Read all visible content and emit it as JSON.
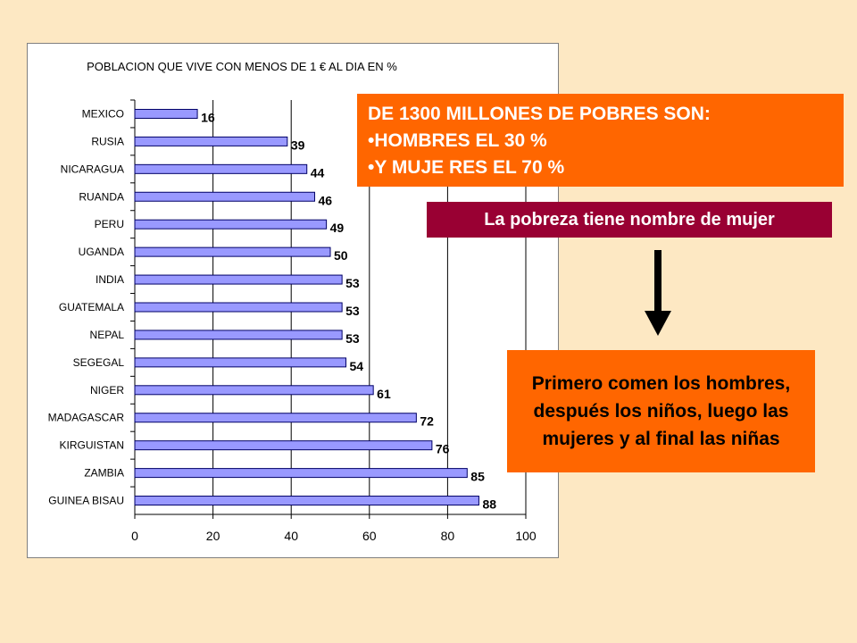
{
  "chart_data": {
    "type": "bar",
    "orientation": "horizontal",
    "title": "POBLACION QUE VIVE CON MENOS DE 1 € AL DIA EN %",
    "categories": [
      "MEXICO",
      "RUSIA",
      "NICARAGUA",
      "RUANDA",
      "PERU",
      "UGANDA",
      "INDIA",
      "GUATEMALA",
      "NEPAL",
      "SEGEGAL",
      "NIGER",
      "MADAGASCAR",
      "KIRGUISTAN",
      "ZAMBIA",
      "GUINEA BISAU"
    ],
    "values": [
      16,
      39,
      44,
      46,
      49,
      50,
      53,
      53,
      53,
      54,
      61,
      72,
      76,
      85,
      88
    ],
    "xlim": [
      0,
      100
    ],
    "xticks": [
      0,
      20,
      40,
      60,
      80,
      100
    ],
    "grid": "vertical",
    "bar_color": "#9999ff",
    "xlabel": "",
    "ylabel": ""
  },
  "stats_box": {
    "heading": "DE 1300  MILLONES DE POBRES  SON:",
    "items": [
      "•HOMBRES EL 30 %",
      "•Y MUJE RES EL 70 %"
    ]
  },
  "tagline": "La pobreza tiene nombre de mujer",
  "note": "Primero comen los hombres, después los niños, luego las mujeres y al final las niñas",
  "colors": {
    "background": "#fde8c3",
    "orange": "#ff6600",
    "maroon": "#990033"
  },
  "arrow_icon": "arrow-down-icon"
}
